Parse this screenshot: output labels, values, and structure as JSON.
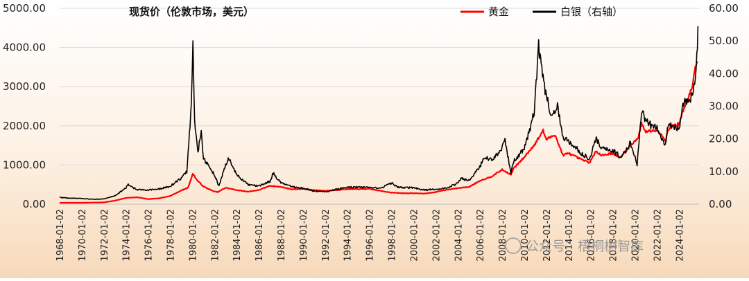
{
  "chart_data": {
    "type": "line",
    "title": "现货价（伦敦市场，美元）",
    "left_axis": {
      "min": 0,
      "max": 5000,
      "step": 1000,
      "ticks": [
        "0.00",
        "1000.00",
        "2000.00",
        "3000.00",
        "4000.00",
        "5000.00"
      ]
    },
    "right_axis": {
      "min": 0,
      "max": 60,
      "step": 10,
      "ticks": [
        "0.00",
        "10.00",
        "20.00",
        "30.00",
        "40.00",
        "50.00",
        "60.00"
      ]
    },
    "x_range": [
      1968.0,
      2025.8
    ],
    "x_ticks": [
      "1968-01-02",
      "1970-01-02",
      "1972-01-02",
      "1974-01-02",
      "1976-01-02",
      "1978-01-02",
      "1980-01-02",
      "1982-01-02",
      "1984-01-02",
      "1986-01-02",
      "1988-01-02",
      "1990-01-02",
      "1992-01-02",
      "1994-01-02",
      "1996-01-02",
      "1998-01-02",
      "2000-01-02",
      "2002-01-02",
      "2004-01-02",
      "2006-01-02",
      "2008-01-02",
      "2010-01-02",
      "2012-01-02",
      "2014-01-02",
      "2016-01-02",
      "2018-01-02",
      "2020-01-02",
      "2022-01-02",
      "2024-01-02"
    ],
    "grid": true,
    "legend_position": "top-right",
    "series": [
      {
        "name": "黄金",
        "color": "#ff0000",
        "axis": "left",
        "points": [
          [
            1968,
            35
          ],
          [
            1970,
            36
          ],
          [
            1972,
            45
          ],
          [
            1973,
            90
          ],
          [
            1974,
            160
          ],
          [
            1975,
            175
          ],
          [
            1976,
            130
          ],
          [
            1977,
            150
          ],
          [
            1978,
            210
          ],
          [
            1979,
            350
          ],
          [
            1979.6,
            420
          ],
          [
            1980.05,
            780
          ],
          [
            1980.4,
            620
          ],
          [
            1981,
            450
          ],
          [
            1982,
            320
          ],
          [
            1982.3,
            310
          ],
          [
            1983,
            420
          ],
          [
            1984,
            360
          ],
          [
            1985,
            320
          ],
          [
            1986,
            360
          ],
          [
            1987,
            470
          ],
          [
            1988,
            440
          ],
          [
            1989,
            380
          ],
          [
            1990,
            390
          ],
          [
            1991,
            360
          ],
          [
            1992,
            340
          ],
          [
            1993,
            360
          ],
          [
            1994,
            385
          ],
          [
            1995,
            385
          ],
          [
            1996,
            390
          ],
          [
            1997,
            340
          ],
          [
            1998,
            295
          ],
          [
            1999,
            280
          ],
          [
            2000,
            280
          ],
          [
            2001,
            270
          ],
          [
            2002,
            310
          ],
          [
            2003,
            370
          ],
          [
            2004,
            410
          ],
          [
            2005,
            440
          ],
          [
            2006,
            600
          ],
          [
            2007,
            700
          ],
          [
            2008,
            880
          ],
          [
            2008.8,
            750
          ],
          [
            2009,
            900
          ],
          [
            2010,
            1200
          ],
          [
            2011,
            1550
          ],
          [
            2011.7,
            1880
          ],
          [
            2012,
            1650
          ],
          [
            2012.8,
            1780
          ],
          [
            2013,
            1600
          ],
          [
            2013.5,
            1250
          ],
          [
            2014,
            1300
          ],
          [
            2015,
            1160
          ],
          [
            2015.9,
            1060
          ],
          [
            2016.5,
            1350
          ],
          [
            2017,
            1250
          ],
          [
            2018,
            1300
          ],
          [
            2018.7,
            1180
          ],
          [
            2019,
            1300
          ],
          [
            2019.6,
            1500
          ],
          [
            2020.3,
            1700
          ],
          [
            2020.6,
            2050
          ],
          [
            2021,
            1850
          ],
          [
            2022,
            1900
          ],
          [
            2022.8,
            1630
          ],
          [
            2023,
            1900
          ],
          [
            2023.4,
            2000
          ],
          [
            2024,
            2050
          ],
          [
            2024.3,
            2350
          ],
          [
            2024.8,
            2700
          ],
          [
            2025.2,
            3000
          ],
          [
            2025.4,
            3400
          ],
          [
            2025.65,
            3650
          ]
        ]
      },
      {
        "name": "白银（右轴）",
        "color": "#000000",
        "axis": "right",
        "points": [
          [
            1968,
            2.1
          ],
          [
            1969,
            1.8
          ],
          [
            1970,
            1.75
          ],
          [
            1971,
            1.5
          ],
          [
            1972,
            1.6
          ],
          [
            1973,
            2.6
          ],
          [
            1974,
            5.0
          ],
          [
            1974.2,
            6.0
          ],
          [
            1975,
            4.4
          ],
          [
            1976,
            4.4
          ],
          [
            1977,
            4.6
          ],
          [
            1978,
            5.5
          ],
          [
            1979,
            8
          ],
          [
            1979.5,
            10
          ],
          [
            1979.9,
            30
          ],
          [
            1980.05,
            49.5
          ],
          [
            1980.2,
            25
          ],
          [
            1980.5,
            16
          ],
          [
            1980.8,
            23
          ],
          [
            1981,
            14
          ],
          [
            1982,
            9
          ],
          [
            1982.4,
            5.5
          ],
          [
            1983,
            12
          ],
          [
            1983.3,
            14
          ],
          [
            1984,
            9
          ],
          [
            1985,
            6
          ],
          [
            1986,
            5.5
          ],
          [
            1987,
            7
          ],
          [
            1987.3,
            9.5
          ],
          [
            1988,
            6.5
          ],
          [
            1989,
            5.3
          ],
          [
            1990,
            4.9
          ],
          [
            1991,
            4.0
          ],
          [
            1992,
            3.8
          ],
          [
            1993,
            4.5
          ],
          [
            1994,
            5.2
          ],
          [
            1995,
            5.2
          ],
          [
            1996,
            5.0
          ],
          [
            1997,
            4.9
          ],
          [
            1998,
            6.5
          ],
          [
            1998.5,
            5.3
          ],
          [
            1999,
            5.1
          ],
          [
            2000,
            5.0
          ],
          [
            2001,
            4.3
          ],
          [
            2002,
            4.6
          ],
          [
            2003,
            4.9
          ],
          [
            2004,
            6.5
          ],
          [
            2004.3,
            7.8
          ],
          [
            2005,
            7.4
          ],
          [
            2006,
            11.5
          ],
          [
            2006.4,
            14.5
          ],
          [
            2007,
            13.5
          ],
          [
            2008,
            17
          ],
          [
            2008.2,
            20.5
          ],
          [
            2008.8,
            9.5
          ],
          [
            2009,
            13
          ],
          [
            2010,
            17
          ],
          [
            2010.9,
            28
          ],
          [
            2011.3,
            48
          ],
          [
            2011.7,
            38
          ],
          [
            2012,
            33
          ],
          [
            2012.5,
            27
          ],
          [
            2013,
            30
          ],
          [
            2013.5,
            20
          ],
          [
            2014,
            19.5
          ],
          [
            2015,
            16
          ],
          [
            2015.9,
            14
          ],
          [
            2016.5,
            20
          ],
          [
            2017,
            17
          ],
          [
            2018,
            16.5
          ],
          [
            2018.8,
            14.2
          ],
          [
            2019,
            15.5
          ],
          [
            2019.6,
            19
          ],
          [
            2020.2,
            12
          ],
          [
            2020.6,
            28
          ],
          [
            2021,
            26
          ],
          [
            2021.5,
            24
          ],
          [
            2022,
            23
          ],
          [
            2022.7,
            18
          ],
          [
            2023,
            23.5
          ],
          [
            2023.5,
            24
          ],
          [
            2024,
            22.5
          ],
          [
            2024.4,
            31
          ],
          [
            2024.8,
            32
          ],
          [
            2025.2,
            33
          ],
          [
            2025.4,
            38
          ],
          [
            2025.6,
            45
          ],
          [
            2025.7,
            54.5
          ]
        ]
      }
    ]
  },
  "watermark": "公众号 · 梧桐树智库"
}
